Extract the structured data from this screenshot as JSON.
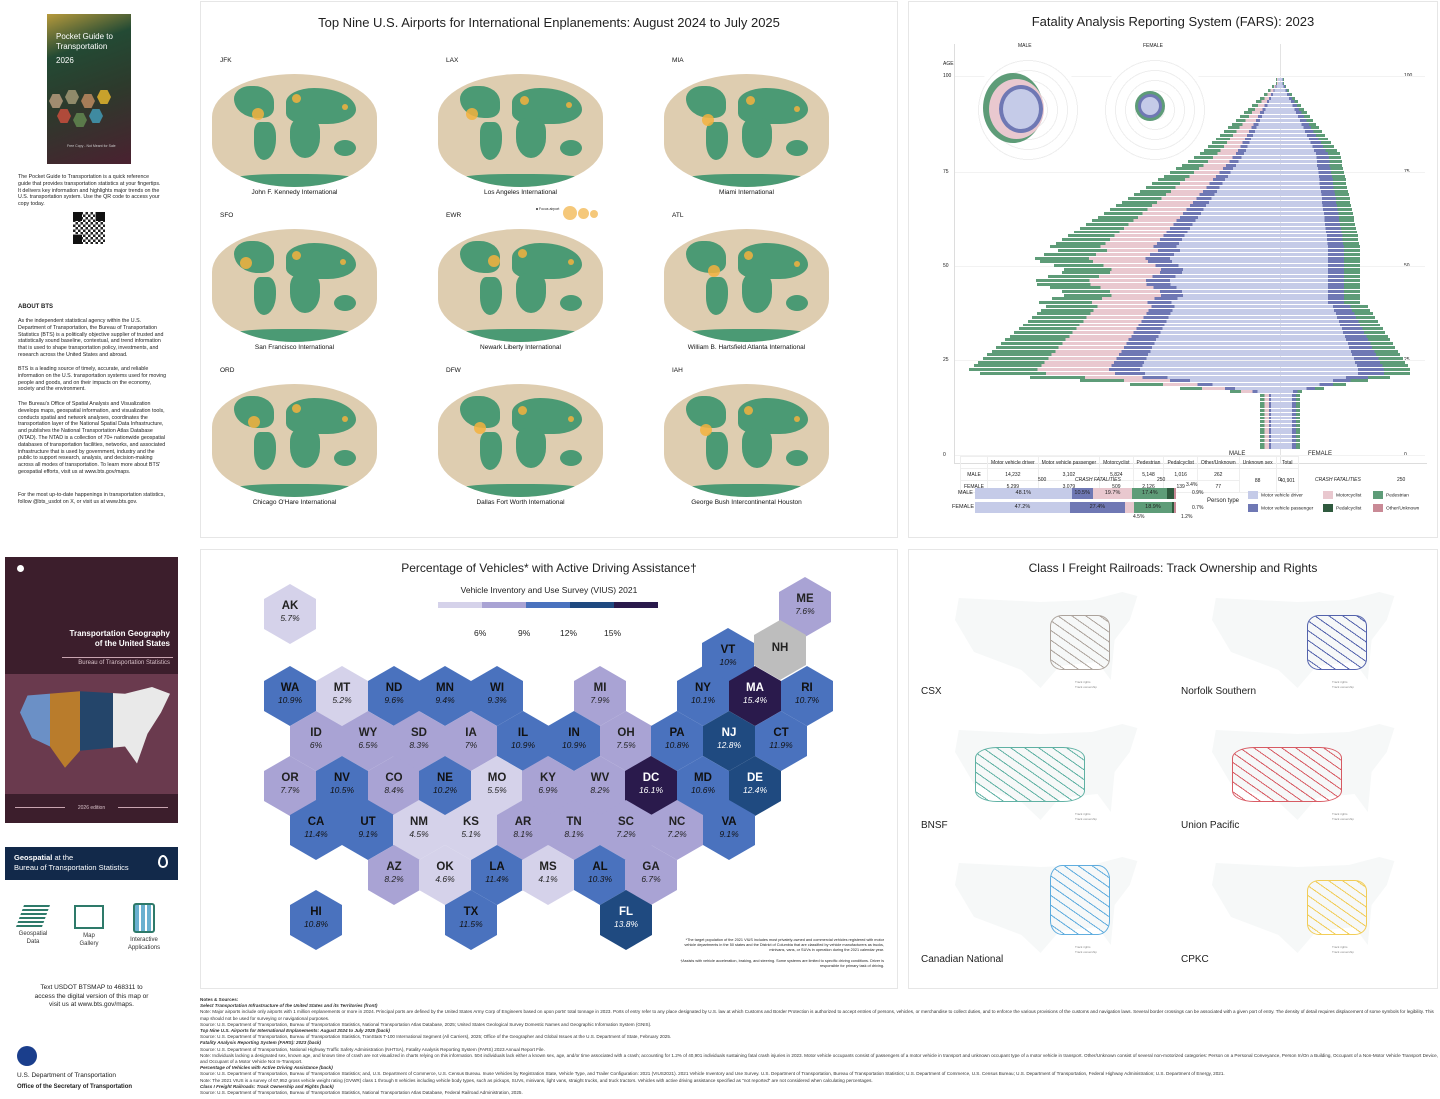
{
  "left_column": {
    "pocket_guide": {
      "cover_title": "Pocket Guide to Transportation",
      "cover_year": "2026",
      "cover_footer": "Free Copy - Not Meant for Sale",
      "description": "The Pocket Guide to Transportation is a quick reference guide that provides transportation statistics at your fingertips. It delivers key information and highlights major trends on the U.S. transportation system. Use the QR code to access your copy today."
    },
    "about": {
      "heading": "ABOUT BTS",
      "p1": "As the independent statistical agency within the U.S. Department of Transportation, the Bureau of Transportation Statistics (BTS) is a politically objective supplier of trusted and statistically sound baseline, contextual, and trend information that is used to shape transportation policy, investments, and research across the United States and abroad.",
      "p2": "BTS is a leading source of timely, accurate, and reliable information on the U.S. transportation systems used for moving people and goods, and on their impacts on the economy, society and the environment.",
      "p3": "The Bureau's Office of Spatial Analysis and Visualization develops maps, geospatial information, and visualization tools, conducts spatial and network analyses, coordinates the transportation layer of the National Spatial Data Infrastructure, and publishes the National Transportation Atlas Database (NTAD). The NTAD is a collection of 70+ nationwide geospatial databases of transportation facilities, networks, and associated infrastructure that is used by government, industry and the public to support research, analysis, and decision-making across all modes of transportation. To learn more about BTS' geospatial efforts, visit us at www.bts.gov/maps.",
      "p4": "For the most up-to-date happenings in transportation statistics, follow @bts_usdot on X, or visit us at www.bts.gov."
    },
    "geography_cover": {
      "title_line1": "Transportation Geography",
      "title_line2": "of the United States",
      "subtitle": "Bureau of Transportation Statistics",
      "edition": "2026 edition"
    },
    "geospatial": {
      "banner_bold": "Geospatial",
      "banner_rest": " at the",
      "banner_line2": "Bureau of Transportation Statistics",
      "icons": [
        {
          "label1": "Geospatial",
          "label2": "Data"
        },
        {
          "label1": "Map",
          "label2": "Gallery"
        },
        {
          "label1": "Interactive",
          "label2": "Applications"
        }
      ],
      "text_line1": "Text USDOT BTSMAP to 468311 to",
      "text_line2": "access the digital version of this map or",
      "text_line3": "visit us at www.bts.gov/maps."
    },
    "footer": {
      "dept": "U.S. Department of Transportation",
      "office": "Office of the Secretary of Transportation"
    }
  },
  "airports": {
    "title": "Top Nine U.S. Airports for International Enplanements: August 2024 to July 2025",
    "legend": {
      "focus": "Focus airport",
      "combined": "Combined enplanements (both directions)",
      "sizes": [
        "3",
        "2",
        "1"
      ],
      "unit": "million"
    },
    "items": [
      {
        "code": "JFK",
        "name": "John F. Kennedy International"
      },
      {
        "code": "LAX",
        "name": "Los Angeles International"
      },
      {
        "code": "MIA",
        "name": "Miami International"
      },
      {
        "code": "SFO",
        "name": "San Francisco International"
      },
      {
        "code": "EWR",
        "name": "Newark Liberty International"
      },
      {
        "code": "ATL",
        "name": "William B. Hartsfield Atlanta International"
      },
      {
        "code": "ORD",
        "name": "Chicago O'Hare International"
      },
      {
        "code": "DFW",
        "name": "Dallas Fort Worth International"
      },
      {
        "code": "IAH",
        "name": "George Bush Intercontinental Houston"
      }
    ]
  },
  "fars": {
    "title": "Fatality Analysis Reporting System (FARS): 2023",
    "radial_male": "MALE",
    "radial_female": "FEMALE",
    "age_label": "AGE",
    "age_ticks": [
      "100",
      "75",
      "50",
      "25",
      "0"
    ],
    "pyramid_male": "MALE",
    "pyramid_female": "FEMALE",
    "x_axis_label": "CRASH FATALITIES",
    "x_ticks_left": [
      "500",
      "250",
      "0"
    ],
    "x_ticks_right": [
      "250"
    ],
    "table": {
      "headers": [
        "Motor vehicle driver",
        "Motor vehicle passenger",
        "Motorcyclist",
        "Pedestrian",
        "Pedalcyclist",
        "Other/Unknown",
        "Unknown sex",
        "Total"
      ],
      "rows": [
        {
          "sex": "MALE",
          "values": [
            "14,232",
            "3,102",
            "5,824",
            "5,148",
            "1,016",
            "262"
          ]
        },
        {
          "sex": "FEMALE",
          "values": [
            "5,299",
            "3,079",
            "509",
            "2,126",
            "139",
            "77"
          ]
        }
      ],
      "unknown_sex": "88",
      "total": "40,901"
    },
    "share_bars": {
      "male": {
        "label": "MALE",
        "segments": [
          "48.1%",
          "10.5%",
          "19.7%",
          "17.4%",
          "3.4%",
          "0.9%"
        ]
      },
      "female": {
        "label": "FEMALE",
        "segments": [
          "47.2%",
          "27.4%",
          "4.5%",
          "18.9%",
          "1.2%",
          "0.7%"
        ]
      }
    },
    "person_type_label": "Person type",
    "legend": [
      {
        "label": "Motor vehicle driver",
        "color": "#c5cbe8"
      },
      {
        "label": "Motor vehicle passenger",
        "color": "#6f78b4"
      },
      {
        "label": "Motorcyclist",
        "color": "#e9c8cf"
      },
      {
        "label": "Pedalcyclist",
        "color": "#2f5a3e"
      },
      {
        "label": "Pedestrian",
        "color": "#5e9c78"
      },
      {
        "label": "Other/Unknown",
        "color": "#c98a96"
      }
    ]
  },
  "adas": {
    "title": "Percentage of Vehicles* with Active Driving Assistance†",
    "subtitle": "Vehicle Inventory and Use Survey (VIUS) 2021",
    "scale_ticks": [
      "6%",
      "9%",
      "12%",
      "15%"
    ],
    "scale_colors": [
      "#d5d2ea",
      "#a9a3d4",
      "#4a72be",
      "#1f4a80",
      "#2a1a4c"
    ],
    "footnote1": "*The target population of the 2021 VIUS includes most privately-owned and commercial vehicles registered with motor vehicle departments in the 50 states and the District of Columbia that are classified by vehicle manufacturers as trucks, minivans, vans, or SUVs in operation during the 2021 calendar year.",
    "footnote2": "†Assists with vehicle acceleration, braking, and steering. Some systems are limited to specific driving conditions. Driver is responsible for primary task of driving.",
    "states": [
      {
        "s": "AK",
        "v": "5.7%"
      },
      {
        "s": "ME",
        "v": "7.6%"
      },
      {
        "s": "VT",
        "v": "10%"
      },
      {
        "s": "NH",
        "v": ""
      },
      {
        "s": "WA",
        "v": "10.9%"
      },
      {
        "s": "MT",
        "v": "5.2%"
      },
      {
        "s": "ND",
        "v": "9.6%"
      },
      {
        "s": "MN",
        "v": "9.4%"
      },
      {
        "s": "WI",
        "v": "9.3%"
      },
      {
        "s": "MI",
        "v": "7.9%"
      },
      {
        "s": "NY",
        "v": "10.1%"
      },
      {
        "s": "MA",
        "v": "15.4%"
      },
      {
        "s": "RI",
        "v": "10.7%"
      },
      {
        "s": "ID",
        "v": "6%"
      },
      {
        "s": "WY",
        "v": "6.5%"
      },
      {
        "s": "SD",
        "v": "8.3%"
      },
      {
        "s": "IA",
        "v": "7%"
      },
      {
        "s": "IL",
        "v": "10.9%"
      },
      {
        "s": "IN",
        "v": "10.9%"
      },
      {
        "s": "OH",
        "v": "7.5%"
      },
      {
        "s": "PA",
        "v": "10.8%"
      },
      {
        "s": "NJ",
        "v": "12.8%"
      },
      {
        "s": "CT",
        "v": "11.9%"
      },
      {
        "s": "OR",
        "v": "7.7%"
      },
      {
        "s": "NV",
        "v": "10.5%"
      },
      {
        "s": "CO",
        "v": "8.4%"
      },
      {
        "s": "NE",
        "v": "10.2%"
      },
      {
        "s": "MO",
        "v": "5.5%"
      },
      {
        "s": "KY",
        "v": "6.9%"
      },
      {
        "s": "WV",
        "v": "8.2%"
      },
      {
        "s": "DC",
        "v": "16.1%"
      },
      {
        "s": "MD",
        "v": "10.6%"
      },
      {
        "s": "DE",
        "v": "12.4%"
      },
      {
        "s": "CA",
        "v": "11.4%"
      },
      {
        "s": "UT",
        "v": "9.1%"
      },
      {
        "s": "NM",
        "v": "4.5%"
      },
      {
        "s": "KS",
        "v": "5.1%"
      },
      {
        "s": "AR",
        "v": "8.1%"
      },
      {
        "s": "TN",
        "v": "8.1%"
      },
      {
        "s": "SC",
        "v": "7.2%"
      },
      {
        "s": "NC",
        "v": "7.2%"
      },
      {
        "s": "VA",
        "v": "9.1%"
      },
      {
        "s": "AZ",
        "v": "8.2%"
      },
      {
        "s": "OK",
        "v": "4.6%"
      },
      {
        "s": "LA",
        "v": "11.4%"
      },
      {
        "s": "MS",
        "v": "4.1%"
      },
      {
        "s": "AL",
        "v": "10.3%"
      },
      {
        "s": "GA",
        "v": "6.7%"
      },
      {
        "s": "HI",
        "v": "10.8%"
      },
      {
        "s": "TX",
        "v": "11.5%"
      },
      {
        "s": "FL",
        "v": "13.8%"
      }
    ]
  },
  "rail": {
    "title": "Class I Freight Railroads: Track Ownership and Rights",
    "legend_rights": "Track rights",
    "legend_ownership": "Track ownership",
    "items": [
      {
        "name": "CSX",
        "color": "#9a8f86"
      },
      {
        "name": "Norfolk Southern",
        "color": "#2c3e9a"
      },
      {
        "name": "BNSF",
        "color": "#3aa08f"
      },
      {
        "name": "Union Pacific",
        "color": "#d0343f"
      },
      {
        "name": "Canadian National",
        "color": "#3a9ad8"
      },
      {
        "name": "CPKC",
        "color": "#f0c230"
      }
    ]
  },
  "notes": {
    "heading": "Notes & Sources:",
    "s1_title": "Select Transportation Infrastructure of the United States and its Territories (front)",
    "s1_note": "Note: Major airports include only airports with 1 million enplanements or more in 2024. Principal ports are defined by the United States Army Corp of Engineers based on upon ports' total tonnage in 2023. Ports of entry refer to any place designated by U.S. law at which Customs and Border Protection is authorized to accept entries of persons, vehicles, or merchandise to collect duties, and to enforce the various provisions of the customs and navigation laws. Several border crossings can be associated with a given port of entry. The density of detail requires displacement of some symbols for legibility. This map should not be used for surveying or navigational purposes.",
    "s1_source": "Source: U.S. Department of Transportation, Bureau of Transportation Statistics, National Transportation Atlas Database, 2025; United States Geological Survey Domestic Names and Geographic Information System (GNIS).",
    "s2_title": "Top Nine U.S. Airports for International Enplanements: August 2024 to July 2025 (back)",
    "s2_source": "Source: U.S. Department of Transportation, Bureau of Transportation Statistics, TranStats T-100 International Segment (All Carriers), 2025; Office of the Geographer and Global Issues at the U.S. Department of State, February 2025.",
    "s3_title": "Fatality Analysis Reporting System (FARS): 2023 (back)",
    "s3_source": "Source: U.S. Department of Transportation, National Highway Traffic Safety Administration (NHTSA), Fatality Analysis Reporting System (FARS) 2023 Annual Report File.",
    "s3_note": "Note: Individuals lacking a designated sex, known age, and known time of crash are not visualized in charts relying on this information. 504 individuals lack either a known sex, age, and/or time associated with a crash; accounting for 1.2% of 40,901 individuals sustaining fatal crash injuries in 2023. Motor vehicle occupants consist of passengers of a motor vehicle in transport and unknown occupant type of a motor vehicle in transport. Other/Unknown consist of several non-motorized categories: Person on a Personal Conveyance, Person In/On a Building, Occupant of a Non-Motor Vehicle Transport Device, and Occupant of a Motor Vehicle Not In-Transport.",
    "s4_title": "Percentage of Vehicles with Active Driving Assistance (back)",
    "s4_source": "Source: U.S. Department of Transportation, Bureau of Transportation Statistics; and, U.S. Department of Commerce, U.S. Census Bureau. Inuse Vehicles by Registration State, Vehicle Type, and Trailer Configuration: 2021 (VIUS2021). 2021 Vehicle Inventory and Use Survey. U.S. Department of Transportation, Bureau of Transportation Statistics; U.S. Department of Commerce, U.S. Census Bureau; U.S. Department of Transportation, Federal Highway Administration; U.S. Department of Energy, 2021.",
    "s4_note": "Note: The 2021 VIUS is a survey of 67,952 gross vehicle weight rating (GVWR) class 1 through 8 vehicles including vehicle body types, such as pickups, SUVs, minivans, light vans, straight trucks, and truck tractors. Vehicles with active driving assistance specified as \"not reported\" are not considered when calculating percentages.",
    "s5_title": "Class I Freight Railroads: Track Ownership and Rights (back)",
    "s5_source": "Source: U.S. Department of Transportation, Bureau of Transportation Statistics, National Transportation Atlas Database, Federal Railroad Administration, 2025."
  }
}
